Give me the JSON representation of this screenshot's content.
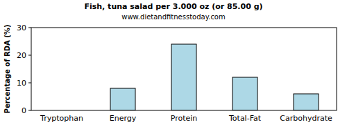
{
  "chart_data": {
    "type": "bar",
    "title": "Fish, tuna salad per 3.000 oz (or 85.00 g)",
    "subtitle": "www.dietandfitnesstoday.com",
    "y_label": "Percentage of RDA (%)",
    "categories": [
      "Tryptophan",
      "Energy",
      "Protein",
      "Total-Fat",
      "Carbohydrate"
    ],
    "values": [
      0,
      8,
      24,
      12,
      6
    ],
    "color": "#add8e6",
    "ylim": [
      0,
      30
    ],
    "yticks": [
      0,
      10,
      20,
      30
    ],
    "grid": false
  }
}
